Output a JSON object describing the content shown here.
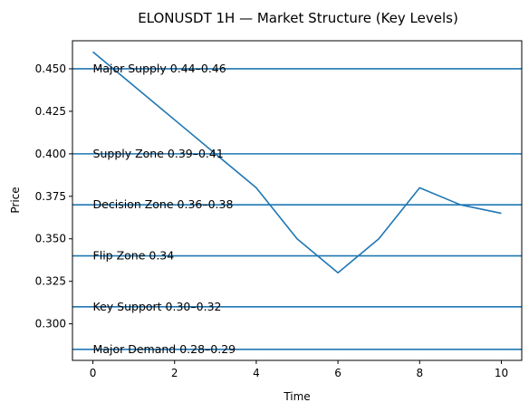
{
  "chart_data": {
    "type": "line",
    "title": "ELONUSDT 1H — Market Structure (Key Levels)",
    "xlabel": "Time",
    "ylabel": "Price",
    "xlim": [
      -0.5,
      10.5
    ],
    "ylim": [
      0.2785,
      0.4665
    ],
    "xticks": [
      0,
      2,
      4,
      6,
      8,
      10
    ],
    "yticks": [
      0.3,
      0.325,
      0.35,
      0.375,
      0.4,
      0.425,
      0.45
    ],
    "grid": false,
    "colors": {
      "series": "#1f77b4",
      "levels": "#1f77b4",
      "axes": "#000000"
    },
    "series": [
      {
        "x": [
          0,
          1,
          2,
          3,
          4,
          5,
          6,
          7,
          8,
          9,
          10
        ],
        "values": [
          0.46,
          0.44,
          0.42,
          0.4,
          0.38,
          0.35,
          0.33,
          0.35,
          0.38,
          0.37,
          0.365
        ]
      }
    ],
    "levels": [
      {
        "y": 0.45,
        "label": "Major Supply 0.44–0.46"
      },
      {
        "y": 0.4,
        "label": "Supply Zone 0.39–0.41"
      },
      {
        "y": 0.37,
        "label": "Decision Zone 0.36–0.38"
      },
      {
        "y": 0.34,
        "label": "Flip Zone 0.34"
      },
      {
        "y": 0.31,
        "label": "Key Support 0.30–0.32"
      },
      {
        "y": 0.285,
        "label": "Major Demand 0.28–0.29"
      }
    ]
  }
}
